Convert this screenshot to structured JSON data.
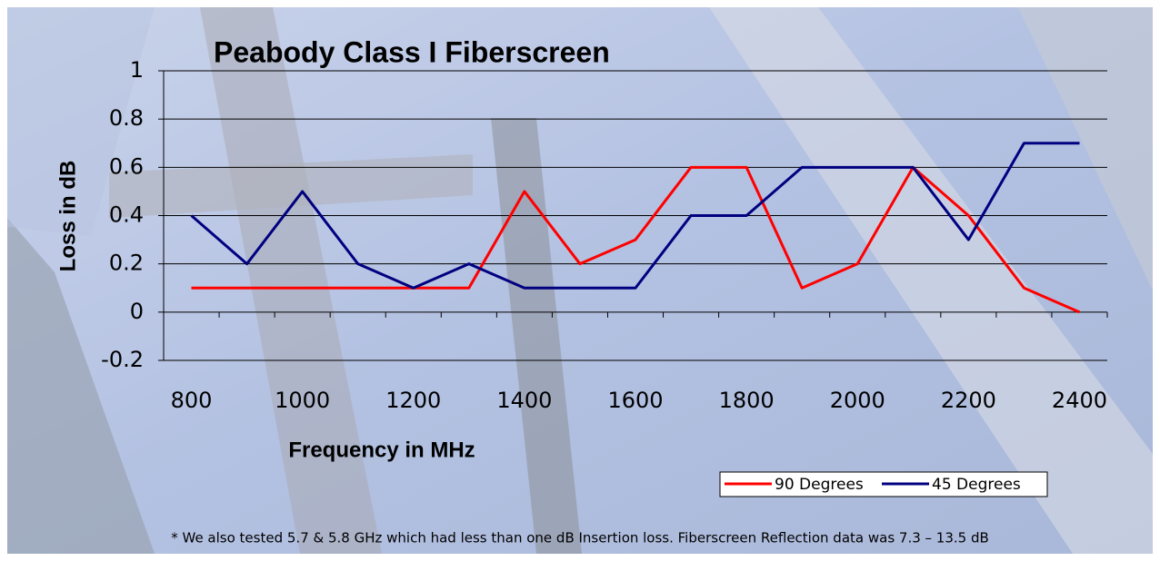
{
  "chart_data": {
    "type": "line",
    "title": "Peabody Class I Fiberscreen",
    "x_label": "Frequency in MHz",
    "y_label": "Loss in dB",
    "footnote": "* We also tested 5.7 & 5.8 GHz which had less than one dB Insertion loss.  Fiberscreen Reflection data was 7.3 – 13.5 dB",
    "categories": [
      "800",
      null,
      "1000",
      null,
      "1200",
      null,
      "1400",
      null,
      "1600",
      null,
      "1800",
      null,
      "2000",
      null,
      "2200",
      null,
      "2400"
    ],
    "series": [
      {
        "name": "90 Degrees",
        "color": "#ff0000",
        "values": [
          0.1,
          0.1,
          0.1,
          0.1,
          0.1,
          0.1,
          0.5,
          0.2,
          0.3,
          0.6,
          0.6,
          0.1,
          0.2,
          0.6,
          0.4,
          0.1,
          0
        ]
      },
      {
        "name": "45 Degrees",
        "color": "#000080",
        "values": [
          0.4,
          0.2,
          0.5,
          0.2,
          0.1,
          0.2,
          0.1,
          0.1,
          0.1,
          0.4,
          0.4,
          0.6,
          0.6,
          0.6,
          0.3,
          0.7,
          0.7
        ]
      }
    ],
    "ylim": [
      -0.2,
      1
    ],
    "yticks": [
      -0.2,
      0,
      0.2,
      0.4,
      0.6,
      0.8,
      1
    ],
    "grid": true,
    "legend": "bottom-right"
  }
}
